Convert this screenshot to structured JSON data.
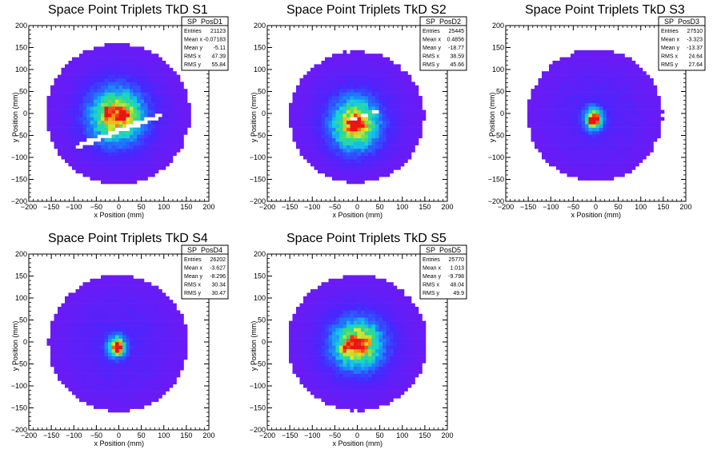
{
  "chart_data": [
    {
      "type": "heatmap",
      "title": "Space Point Triplets TkD S1",
      "xlabel": "x Position (mm)",
      "ylabel": "y Position (mm)",
      "xlim": [
        -200,
        200
      ],
      "ylim": [
        -200,
        200
      ],
      "xticks": [
        "−200",
        "−150",
        "−100",
        "−50",
        "0",
        "50",
        "100",
        "150",
        "200"
      ],
      "yticks": [
        "−200",
        "−150",
        "−100",
        "−50",
        "0",
        "50",
        "100",
        "150",
        "200"
      ],
      "stats": {
        "name": "SP_PosD1",
        "rows": [
          {
            "label": "Entries",
            "value": "21123"
          },
          {
            "label": "Mean x",
            "value": "-0.07183"
          },
          {
            "label": "Mean y",
            "value": "-5.11"
          },
          {
            "label": "RMS x",
            "value": "47.39"
          },
          {
            "label": "RMS y",
            "value": "55.84"
          }
        ]
      },
      "distribution": {
        "center": [
          -5,
          -5
        ],
        "sigma": [
          40,
          42
        ],
        "radius": 160,
        "peak_hotspots": [
          [
            0,
            -10
          ],
          [
            15,
            -5
          ],
          [
            -25,
            5
          ]
        ],
        "gap": "diagonal band through (-80,-70)-(90,-5)"
      }
    },
    {
      "type": "heatmap",
      "title": "Space Point Triplets TkD S2",
      "xlabel": "x Position (mm)",
      "ylabel": "y Position (mm)",
      "xlim": [
        -200,
        200
      ],
      "ylim": [
        -200,
        200
      ],
      "xticks": [
        "−200",
        "−150",
        "−100",
        "−50",
        "0",
        "50",
        "100",
        "150",
        "200"
      ],
      "yticks": [
        "−200",
        "−150",
        "−100",
        "−50",
        "0",
        "50",
        "100",
        "150",
        "200"
      ],
      "stats": {
        "name": "SP_PosD2",
        "rows": [
          {
            "label": "Entries",
            "value": "25445"
          },
          {
            "label": "Mean x",
            "value": "0.4856"
          },
          {
            "label": "Mean y",
            "value": "-18.77"
          },
          {
            "label": "RMS x",
            "value": "38.59"
          },
          {
            "label": "RMS y",
            "value": "45.66"
          }
        ]
      },
      "distribution": {
        "center": [
          -5,
          -25
        ],
        "sigma": [
          36,
          40
        ],
        "radius": 150,
        "peak_hotspots": [
          [
            0,
            -25
          ],
          [
            -15,
            -20
          ],
          [
            5,
            -30
          ]
        ],
        "gap": "diagonal stripes"
      }
    },
    {
      "type": "heatmap",
      "title": "Space Point Triplets TkD S3",
      "xlabel": "x Position (mm)",
      "ylabel": "y Position (mm)",
      "xlim": [
        -200,
        200
      ],
      "ylim": [
        -200,
        200
      ],
      "xticks": [
        "−200",
        "−150",
        "−100",
        "−50",
        "0",
        "50",
        "100",
        "150",
        "200"
      ],
      "yticks": [
        "−200",
        "−150",
        "−100",
        "−50",
        "0",
        "50",
        "100",
        "150",
        "200"
      ],
      "stats": {
        "name": "SP_PosD3",
        "rows": [
          {
            "label": "Entries",
            "value": "27510"
          },
          {
            "label": "Mean x",
            "value": "-3.323"
          },
          {
            "label": "Mean y",
            "value": "-13.37"
          },
          {
            "label": "RMS x",
            "value": "24.64"
          },
          {
            "label": "RMS y",
            "value": "27.64"
          }
        ]
      },
      "distribution": {
        "center": [
          -5,
          -12
        ],
        "sigma": [
          14,
          18
        ],
        "radius": 150,
        "peak_hotspots": [
          [
            -5,
            -10
          ],
          [
            0,
            -15
          ]
        ],
        "gap": "none"
      }
    },
    {
      "type": "heatmap",
      "title": "Space Point Triplets TkD S4",
      "xlabel": "x Position (mm)",
      "ylabel": "y Position (mm)",
      "xlim": [
        -200,
        200
      ],
      "ylim": [
        -200,
        200
      ],
      "xticks": [
        "−200",
        "−150",
        "−100",
        "−50",
        "0",
        "50",
        "100",
        "150",
        "200"
      ],
      "yticks": [
        "−200",
        "−150",
        "−100",
        "−50",
        "0",
        "50",
        "100",
        "150",
        "200"
      ],
      "stats": {
        "name": "SP_PosD4",
        "rows": [
          {
            "label": "Entries",
            "value": "26202"
          },
          {
            "label": "Mean x",
            "value": "-3.627"
          },
          {
            "label": "Mean y",
            "value": "-8.296"
          },
          {
            "label": "RMS x",
            "value": "30.34"
          },
          {
            "label": "RMS y",
            "value": "30.47"
          }
        ]
      },
      "distribution": {
        "center": [
          -5,
          -10
        ],
        "sigma": [
          14,
          17
        ],
        "radius": 155,
        "peak_hotspots": [
          [
            -5,
            -10
          ],
          [
            0,
            -15
          ]
        ],
        "gap": "none"
      }
    },
    {
      "type": "heatmap",
      "title": "Space Point Triplets TkD S5",
      "xlabel": "x Position (mm)",
      "ylabel": "y Position (mm)",
      "xlim": [
        -200,
        200
      ],
      "ylim": [
        -200,
        200
      ],
      "xticks": [
        "−200",
        "−150",
        "−100",
        "−50",
        "0",
        "50",
        "100",
        "150",
        "200"
      ],
      "yticks": [
        "−200",
        "−150",
        "−100",
        "−50",
        "0",
        "50",
        "100",
        "150",
        "200"
      ],
      "stats": {
        "name": "SP_PosD5",
        "rows": [
          {
            "label": "Entries",
            "value": "25770"
          },
          {
            "label": "Mean x",
            "value": "1.013"
          },
          {
            "label": "Mean y",
            "value": "-9.798"
          },
          {
            "label": "RMS x",
            "value": "48.04"
          },
          {
            "label": "RMS y",
            "value": "49.9"
          }
        ]
      },
      "distribution": {
        "center": [
          0,
          -5
        ],
        "sigma": [
          38,
          38
        ],
        "radius": 155,
        "peak_hotspots": [
          [
            -10,
            -5
          ],
          [
            15,
            0
          ],
          [
            -25,
            -15
          ],
          [
            5,
            -20
          ]
        ],
        "gap": "none"
      }
    }
  ]
}
